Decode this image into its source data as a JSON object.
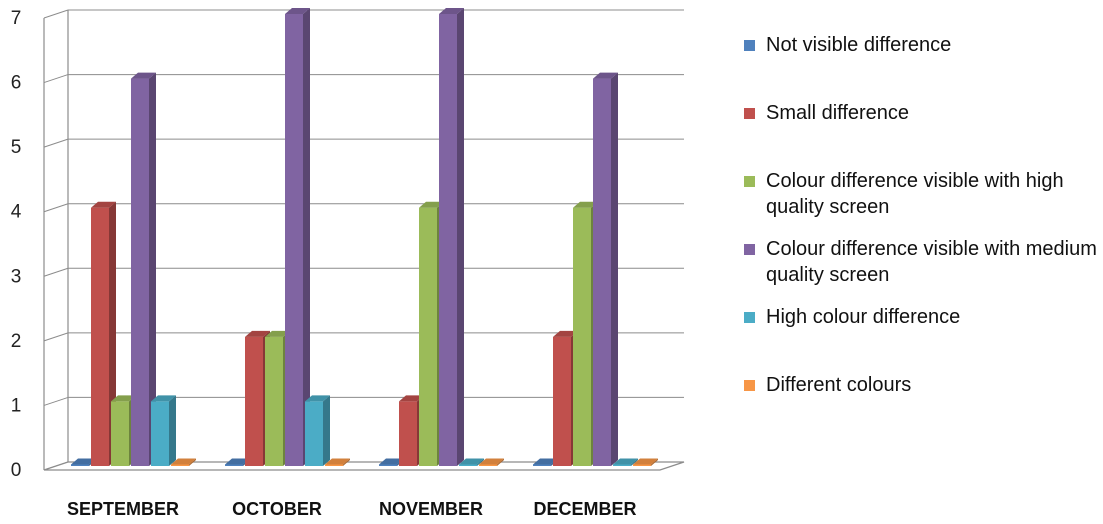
{
  "chart_data": {
    "type": "bar",
    "style": "3d-clustered-column",
    "categories": [
      "SEPTEMBER",
      "OCTOBER",
      "NOVEMBER",
      "DECEMBER"
    ],
    "ylim": [
      0,
      7
    ],
    "yticks": [
      "0",
      "1",
      "2",
      "3",
      "4",
      "5",
      "6",
      "7"
    ],
    "grid": true,
    "legend_position": "right",
    "series": [
      {
        "name": "Not visible difference",
        "color": "#4F81BD",
        "values": [
          0,
          0,
          0,
          0
        ]
      },
      {
        "name": "Small difference",
        "color": "#C0504D",
        "values": [
          4,
          2,
          1,
          2
        ]
      },
      {
        "name": "Colour difference visible with high quality screen",
        "color": "#9BBB59",
        "values": [
          1,
          2,
          4,
          4
        ]
      },
      {
        "name": "Colour difference visible with medium quality screen",
        "color": "#8064A2",
        "values": [
          6,
          7,
          7,
          6
        ]
      },
      {
        "name": "High colour difference",
        "color": "#4BACC6",
        "values": [
          1,
          1,
          0,
          0
        ]
      },
      {
        "name": "Different colours",
        "color": "#F79646",
        "values": [
          0,
          0,
          0,
          0
        ]
      }
    ]
  }
}
